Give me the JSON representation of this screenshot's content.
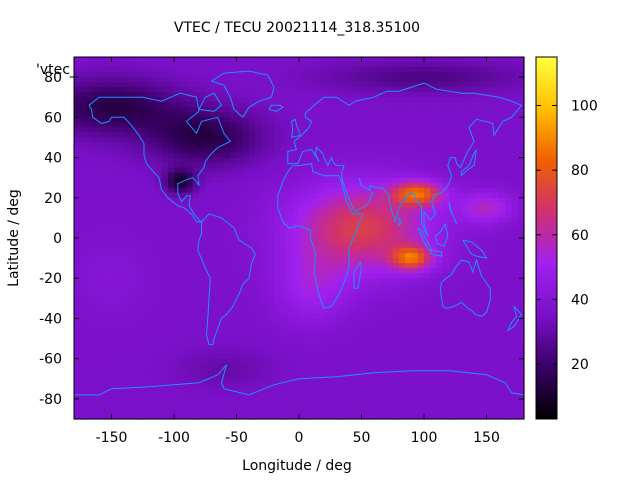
{
  "chart_data": {
    "type": "heatmap",
    "title": "VTEC / TECU 20021114_318.35100",
    "xlabel": "Longitude / deg",
    "ylabel": "Latitude / deg",
    "series_key": "'vtec_",
    "xlim": [
      -180,
      180
    ],
    "ylim": [
      -90,
      90
    ],
    "x_ticks": [
      -150,
      -100,
      -50,
      0,
      50,
      100,
      150
    ],
    "y_ticks": [
      -80,
      -60,
      -40,
      -20,
      0,
      20,
      40,
      60,
      80
    ],
    "colorbar": {
      "range": [
        3,
        115
      ],
      "ticks": [
        20,
        40,
        60,
        80,
        100
      ],
      "palette": [
        "#000000",
        "#3a0066",
        "#7a10c8",
        "#a020f0",
        "#d03070",
        "#f06000",
        "#ffc000",
        "#ffff40"
      ]
    },
    "grid": {
      "dlon": 5,
      "dlat": 2.5
    },
    "features": {
      "background": 36,
      "blobs": [
        {
          "lon": 50,
          "lat": 5,
          "slon": 55,
          "slat": 22,
          "amp": 36
        },
        {
          "lon": 95,
          "lat": 22,
          "slon": 20,
          "slat": 6,
          "amp": 42
        },
        {
          "lon": 90,
          "lat": -10,
          "slon": 16,
          "slat": 6,
          "amp": 40
        },
        {
          "lon": 150,
          "lat": 15,
          "slon": 22,
          "slat": 8,
          "amp": 20
        },
        {
          "lon": 10,
          "lat": -25,
          "slon": 30,
          "slat": 18,
          "amp": 14
        },
        {
          "lon": -150,
          "lat": 65,
          "slon": 55,
          "slat": 14,
          "amp": -22
        },
        {
          "lon": -75,
          "lat": 50,
          "slon": 45,
          "slat": 14,
          "amp": -22
        },
        {
          "lon": -95,
          "lat": 28,
          "slon": 12,
          "slat": 6,
          "amp": -26
        },
        {
          "lon": 100,
          "lat": 80,
          "slon": 80,
          "slat": 8,
          "amp": -12
        },
        {
          "lon": -150,
          "lat": -20,
          "slon": 30,
          "slat": 20,
          "amp": 4
        },
        {
          "lon": -60,
          "lat": -65,
          "slon": 40,
          "slat": 10,
          "amp": -6
        }
      ]
    }
  }
}
